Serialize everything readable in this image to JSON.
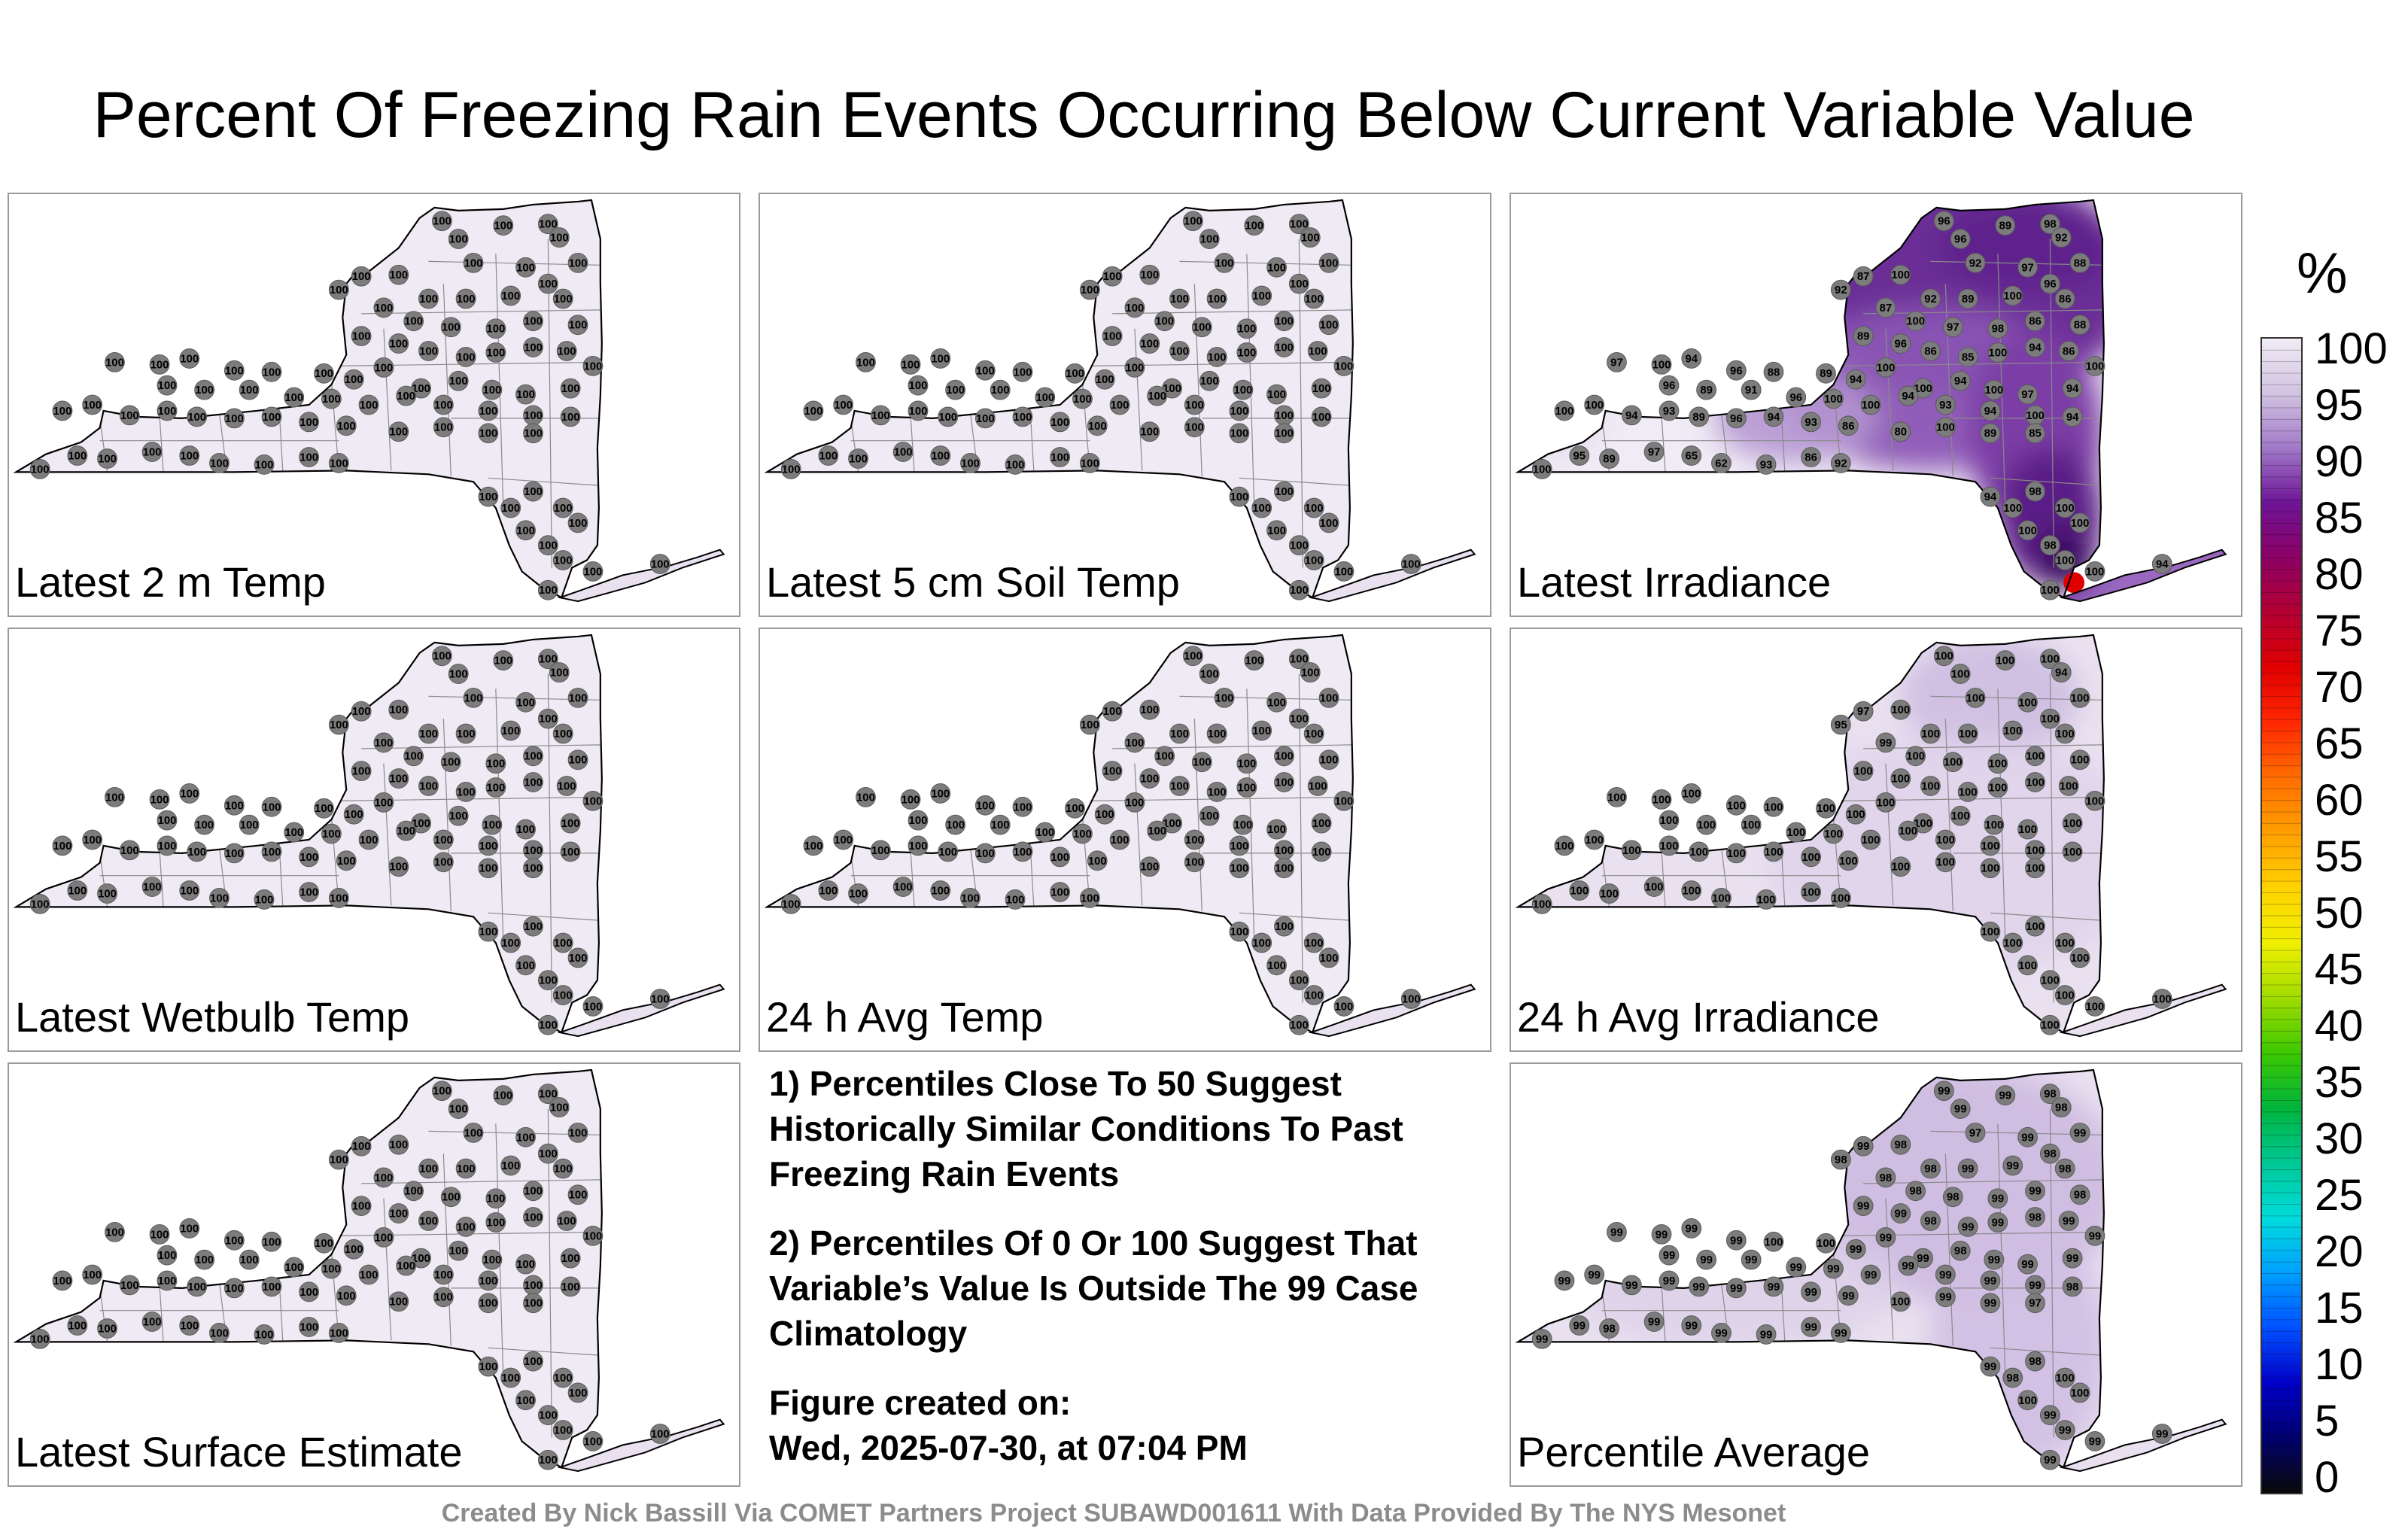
{
  "title": "Percent Of Freezing Rain Events Occurring Below Current Variable Value",
  "panels": [
    {
      "id": "p1",
      "label": "Latest 2 m Temp",
      "fill": "#ece6f2",
      "values": "uniform100"
    },
    {
      "id": "p2",
      "label": "Latest 5 cm Soil Temp",
      "fill": "#ece6f2",
      "values": "uniform100"
    },
    {
      "id": "p3",
      "label": "Latest Irradiance",
      "fill": "#7a3aa0",
      "values": "irr"
    },
    {
      "id": "p4",
      "label": "Latest Wetbulb Temp",
      "fill": "#ece6f2",
      "values": "uniform100"
    },
    {
      "id": "p5",
      "label": "24 h Avg Temp",
      "fill": "#ece6f2",
      "values": "uniform100"
    },
    {
      "id": "p6",
      "label": "24 h Avg Irradiance",
      "fill": "#ded0ea",
      "values": "avgirr"
    },
    {
      "id": "p7",
      "label": "Latest Surface Estimate",
      "fill": "#ece6f2",
      "values": "uniform100"
    },
    {
      "id": "p8",
      "label": "Percentile Average",
      "fill": "#ddcfe9",
      "values": "pavg"
    }
  ],
  "notes": {
    "n1": "1) Percentiles Close To 50 Suggest Historically Similar Conditions To Past Freezing Rain Events",
    "n2": "2) Percentiles Of 0 Or 100 Suggest That Variable’s Value Is Outside The 99 Case Climatology",
    "n3a": "Figure created on:",
    "n3b": "Wed, 2025-07-30, at 07:04 PM"
  },
  "colorbar": {
    "unit": "%",
    "ticks": [
      "100",
      "95",
      "90",
      "85",
      "80",
      "75",
      "70",
      "65",
      "60",
      "55",
      "50",
      "45",
      "40",
      "35",
      "30",
      "25",
      "20",
      "15",
      "10",
      "5",
      "0"
    ],
    "colors": [
      "#0a0a0a",
      "#00006e",
      "#0000c8",
      "#0050ff",
      "#00a0ff",
      "#00dcdc",
      "#00c896",
      "#00b43c",
      "#3cc800",
      "#a0dc00",
      "#f0f000",
      "#ffd200",
      "#ffa000",
      "#ff6e00",
      "#ff2800",
      "#e10000",
      "#b40032",
      "#8c0064",
      "#6e1496",
      "#a078c8",
      "#d2c3e1",
      "#f0ebf5"
    ]
  },
  "footer": "Created By Nick Bassill Via COMET Partners Project SUBAWD001611 With Data Provided By The NYS Mesonet",
  "station_values": {
    "irr": [
      "96",
      "89",
      "98",
      "92",
      "96",
      "87",
      "92",
      "100",
      "92",
      "97",
      "88",
      "96",
      "92",
      "89",
      "100",
      "86",
      "87",
      "100",
      "97",
      "98",
      "86",
      "88",
      "89",
      "96",
      "86",
      "85",
      "100",
      "94",
      "86",
      "100",
      "97",
      "100",
      "94",
      "96",
      "88",
      "89",
      "94",
      "100",
      "100",
      "94",
      "100",
      "97",
      "94",
      "96",
      "89",
      "91",
      "96",
      "100",
      "100",
      "94",
      "93",
      "94",
      "100",
      "94",
      "100",
      "100",
      "94",
      "93",
      "89",
      "96",
      "94",
      "93",
      "86",
      "80",
      "100",
      "89",
      "85",
      "95",
      "89",
      "97",
      "65",
      "62",
      "93",
      "86",
      "92",
      "100",
      "94",
      "100",
      "98",
      "100",
      "100",
      "100",
      "98",
      "100",
      "100",
      "94",
      "100"
    ],
    "avgirr": [
      "100",
      "100",
      "100",
      "94",
      "100",
      "97",
      "95",
      "100",
      "100",
      "100",
      "100",
      "100",
      "100",
      "100",
      "100",
      "100",
      "99",
      "100",
      "100",
      "100",
      "100",
      "100",
      "100",
      "100",
      "100",
      "100",
      "100",
      "100",
      "100",
      "100",
      "100",
      "100",
      "100",
      "100",
      "100",
      "100",
      "100",
      "100",
      "100",
      "100",
      "100",
      "100",
      "100",
      "100",
      "100",
      "100",
      "100",
      "100",
      "100",
      "100",
      "100",
      "100",
      "100",
      "100",
      "100",
      "100",
      "100",
      "100",
      "100",
      "100",
      "100",
      "100",
      "100",
      "100",
      "100",
      "100",
      "100",
      "100",
      "100",
      "100",
      "100",
      "100",
      "100",
      "100",
      "100",
      "100",
      "100",
      "100",
      "100",
      "100",
      "100",
      "100",
      "100",
      "100",
      "100",
      "100",
      "100"
    ],
    "pavg": [
      "99",
      "99",
      "98",
      "98",
      "99",
      "99",
      "98",
      "98",
      "97",
      "99",
      "99",
      "98",
      "98",
      "99",
      "99",
      "98",
      "98",
      "98",
      "98",
      "99",
      "99",
      "98",
      "99",
      "99",
      "98",
      "99",
      "99",
      "98",
      "99",
      "99",
      "99",
      "99",
      "99",
      "99",
      "100",
      "100",
      "99",
      "99",
      "99",
      "98",
      "99",
      "99",
      "99",
      "99",
      "99",
      "99",
      "99",
      "99",
      "99",
      "99",
      "99",
      "99",
      "99",
      "98",
      "99",
      "99",
      "99",
      "99",
      "99",
      "99",
      "99",
      "99",
      "99",
      "100",
      "99",
      "99",
      "97",
      "99",
      "98",
      "99",
      "99",
      "99",
      "99",
      "99",
      "99",
      "99",
      "99",
      "98",
      "98",
      "100",
      "100",
      "100",
      "99",
      "99",
      "99",
      "99",
      "99"
    ]
  }
}
